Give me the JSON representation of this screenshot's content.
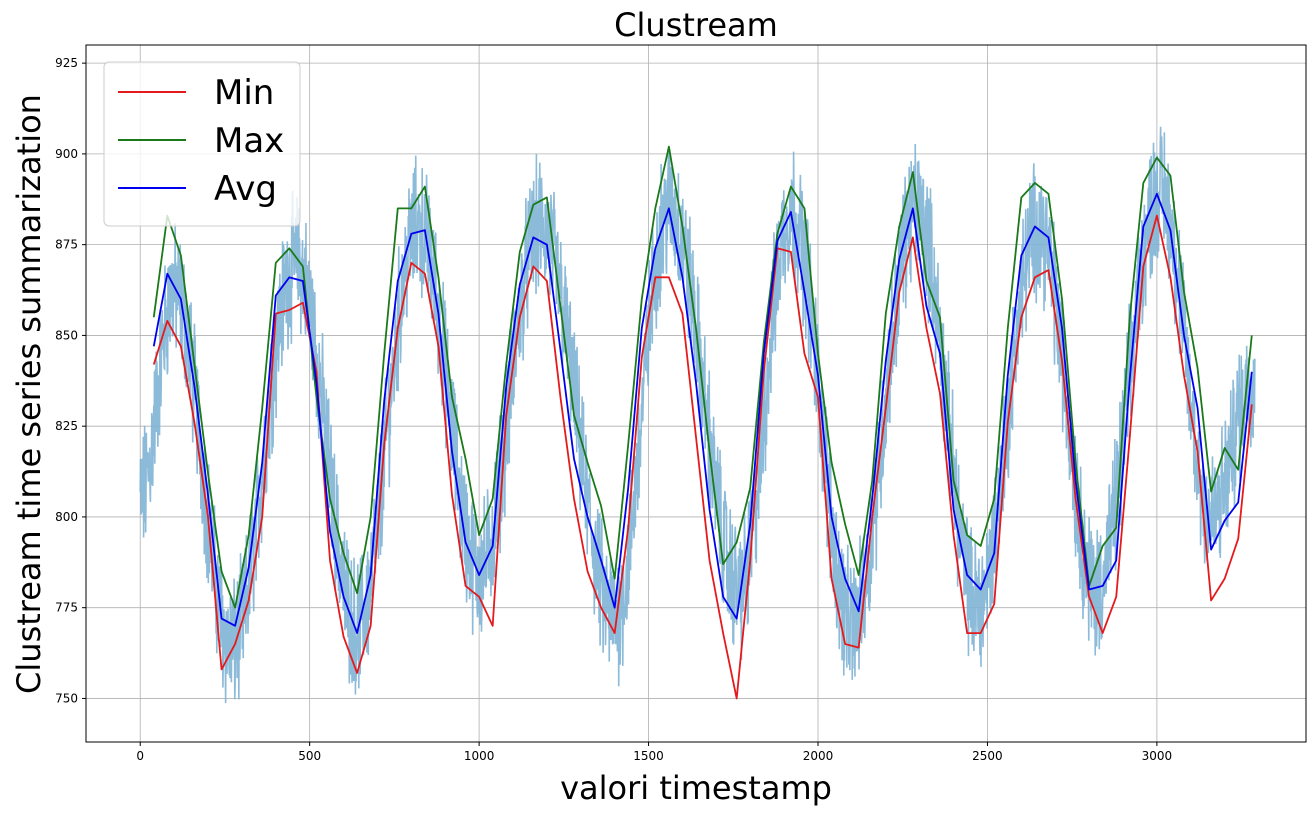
{
  "chart_data": {
    "type": "line",
    "title": "Clustream",
    "xlabel": "valori timestamp",
    "ylabel": "Clustream time series summarization",
    "xlim": [
      -160,
      3440
    ],
    "ylim": [
      738,
      930
    ],
    "xticks": [
      0,
      500,
      1000,
      1500,
      2000,
      2500,
      3000
    ],
    "yticks": [
      750,
      775,
      800,
      825,
      850,
      875,
      900,
      925
    ],
    "grid": true,
    "legend_position": "top-left",
    "raw_series": {
      "color": "#7fb2d5",
      "period": 360,
      "points": 3290,
      "keypoints": [
        [
          0,
          805
        ],
        [
          100,
          862
        ],
        [
          270,
          764
        ],
        [
          460,
          870
        ],
        [
          640,
          770
        ],
        [
          820,
          880
        ],
        [
          1000,
          785
        ],
        [
          1180,
          880
        ],
        [
          1400,
          772
        ],
        [
          1560,
          885
        ],
        [
          1770,
          780
        ],
        [
          1920,
          884
        ],
        [
          2100,
          770
        ],
        [
          2290,
          885
        ],
        [
          2470,
          776
        ],
        [
          2650,
          880
        ],
        [
          2820,
          780
        ],
        [
          3010,
          890
        ],
        [
          3160,
          800
        ],
        [
          3285,
          838
        ]
      ]
    },
    "series": [
      {
        "name": "Min",
        "color": "#e41a1c",
        "x": [
          40,
          80,
          120,
          160,
          200,
          240,
          280,
          320,
          360,
          400,
          440,
          480,
          520,
          560,
          600,
          640,
          680,
          720,
          760,
          800,
          840,
          880,
          920,
          960,
          1000,
          1040,
          1080,
          1120,
          1160,
          1200,
          1240,
          1280,
          1320,
          1360,
          1400,
          1440,
          1480,
          1520,
          1560,
          1600,
          1640,
          1680,
          1720,
          1760,
          1800,
          1840,
          1880,
          1920,
          1960,
          2000,
          2040,
          2080,
          2120,
          2160,
          2200,
          2240,
          2280,
          2320,
          2360,
          2400,
          2440,
          2480,
          2520,
          2560,
          2600,
          2640,
          2680,
          2720,
          2760,
          2800,
          2840,
          2880,
          2920,
          2960,
          3000,
          3040,
          3080,
          3120,
          3160,
          3200,
          3240,
          3280
        ],
        "y": [
          842,
          854,
          847,
          826,
          800,
          758,
          765,
          777,
          800,
          856,
          857,
          859,
          840,
          788,
          767,
          757,
          770,
          820,
          852,
          870,
          867,
          847,
          806,
          781,
          778,
          770,
          828,
          855,
          869,
          865,
          833,
          805,
          785,
          775,
          768,
          797,
          844,
          866,
          866,
          856,
          822,
          788,
          768,
          750,
          788,
          840,
          874,
          873,
          845,
          833,
          783,
          765,
          764,
          800,
          830,
          862,
          877,
          852,
          834,
          795,
          768,
          768,
          776,
          826,
          855,
          866,
          868,
          843,
          805,
          778,
          768,
          778,
          822,
          869,
          883,
          866,
          839,
          818,
          777,
          783,
          794,
          831
        ]
      },
      {
        "name": "Max",
        "color": "#1a7a1a",
        "x": [
          40,
          80,
          120,
          160,
          200,
          240,
          280,
          320,
          360,
          400,
          440,
          480,
          520,
          560,
          600,
          640,
          680,
          720,
          760,
          800,
          840,
          880,
          920,
          960,
          1000,
          1040,
          1080,
          1120,
          1160,
          1200,
          1240,
          1280,
          1320,
          1360,
          1400,
          1440,
          1480,
          1520,
          1560,
          1600,
          1640,
          1680,
          1720,
          1760,
          1800,
          1840,
          1880,
          1920,
          1960,
          2000,
          2040,
          2080,
          2120,
          2160,
          2200,
          2240,
          2280,
          2320,
          2360,
          2400,
          2440,
          2480,
          2520,
          2560,
          2600,
          2640,
          2680,
          2720,
          2760,
          2800,
          2840,
          2880,
          2920,
          2960,
          3000,
          3040,
          3080,
          3120,
          3160,
          3200,
          3240,
          3280
        ],
        "y": [
          855,
          883,
          872,
          842,
          812,
          785,
          775,
          795,
          830,
          870,
          874,
          869,
          833,
          805,
          790,
          779,
          800,
          845,
          885,
          885,
          891,
          866,
          833,
          816,
          795,
          805,
          842,
          873,
          886,
          888,
          858,
          828,
          815,
          803,
          783,
          820,
          860,
          885,
          902,
          880,
          852,
          818,
          787,
          793,
          808,
          848,
          878,
          891,
          885,
          845,
          815,
          798,
          784,
          810,
          856,
          880,
          895,
          865,
          855,
          810,
          795,
          792,
          805,
          852,
          888,
          892,
          889,
          860,
          815,
          781,
          792,
          797,
          855,
          892,
          899,
          894,
          862,
          841,
          807,
          819,
          813,
          850
        ]
      },
      {
        "name": "Avg",
        "color": "#0000ee",
        "x": [
          40,
          80,
          120,
          160,
          200,
          240,
          280,
          320,
          360,
          400,
          440,
          480,
          520,
          560,
          600,
          640,
          680,
          720,
          760,
          800,
          840,
          880,
          920,
          960,
          1000,
          1040,
          1080,
          1120,
          1160,
          1200,
          1240,
          1280,
          1320,
          1360,
          1400,
          1440,
          1480,
          1520,
          1560,
          1600,
          1640,
          1680,
          1720,
          1760,
          1800,
          1840,
          1880,
          1920,
          1960,
          2000,
          2040,
          2080,
          2120,
          2160,
          2200,
          2240,
          2280,
          2320,
          2360,
          2400,
          2440,
          2480,
          2520,
          2560,
          2600,
          2640,
          2680,
          2720,
          2760,
          2800,
          2840,
          2880,
          2920,
          2960,
          3000,
          3040,
          3080,
          3120,
          3160,
          3200,
          3240,
          3280
        ],
        "y": [
          847,
          867,
          860,
          836,
          806,
          772,
          770,
          786,
          815,
          861,
          866,
          865,
          837,
          796,
          778,
          768,
          784,
          832,
          865,
          878,
          879,
          856,
          818,
          793,
          784,
          792,
          836,
          864,
          877,
          875,
          846,
          816,
          800,
          788,
          775,
          808,
          852,
          874,
          885,
          866,
          837,
          802,
          778,
          772,
          798,
          845,
          876,
          884,
          862,
          839,
          800,
          783,
          774,
          805,
          843,
          871,
          885,
          858,
          845,
          802,
          784,
          780,
          790,
          839,
          872,
          880,
          877,
          852,
          810,
          780,
          781,
          788,
          838,
          880,
          889,
          879,
          850,
          830,
          791,
          799,
          804,
          840
        ]
      }
    ]
  }
}
